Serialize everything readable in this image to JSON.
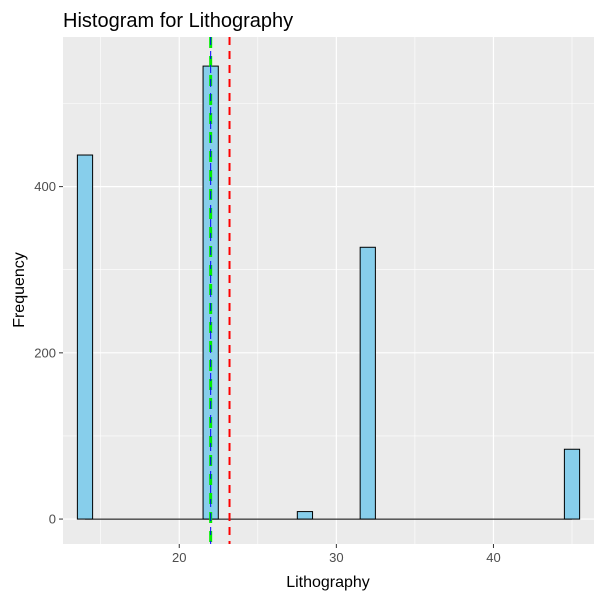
{
  "chart_data": {
    "type": "bar",
    "title": "Histogram for Lithography",
    "xlabel": "Lithography",
    "ylabel": "Frequency",
    "xlim": [
      12.6,
      46.4
    ],
    "ylim": [
      -30,
      580
    ],
    "x_ticks": [
      20,
      30,
      40
    ],
    "y_ticks": [
      0,
      200,
      400
    ],
    "grid": true,
    "legend": "none",
    "bins": [
      {
        "x": 14,
        "count": 438
      },
      {
        "x": 22,
        "count": 545
      },
      {
        "x": 28,
        "count": 9
      },
      {
        "x": 32,
        "count": 327
      },
      {
        "x": 45,
        "count": 84
      }
    ],
    "bar_fill": "#87ceeb",
    "bar_stroke": "#000000",
    "panel_background": "#ebebeb",
    "reference_lines": [
      {
        "x": 22,
        "color": "#00ee00",
        "style": "long-dash"
      },
      {
        "x": 22,
        "color": "#0000ff",
        "style": "dashed"
      },
      {
        "x": 23.2,
        "color": "#ff0000",
        "style": "dashed"
      }
    ]
  }
}
